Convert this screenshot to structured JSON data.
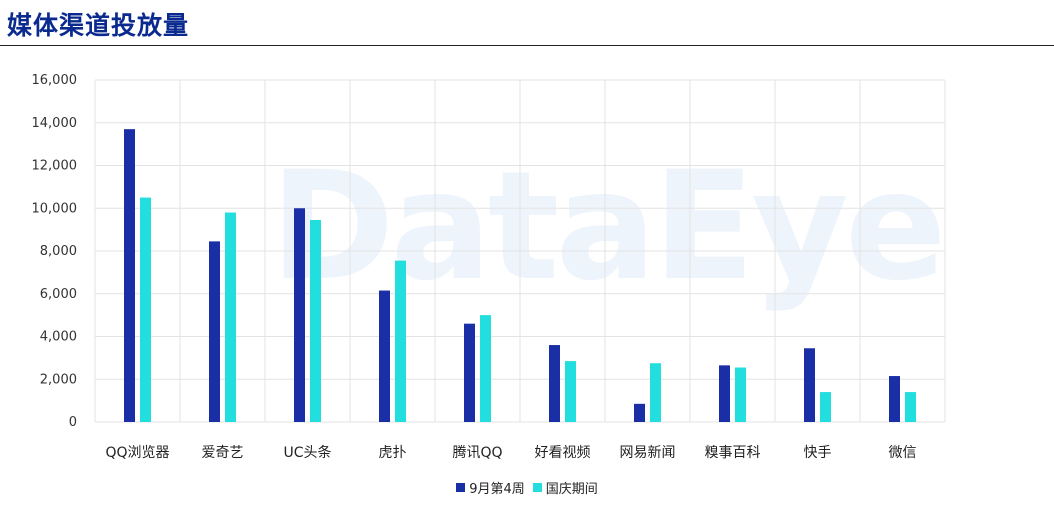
{
  "title": "媒体渠道投放量",
  "watermark": "DataEye",
  "colors": {
    "series0": "#1a2fa6",
    "series1": "#22dede",
    "grid": "#e3e3e3",
    "title": "#0b2a8f"
  },
  "chart_data": {
    "type": "bar",
    "categories": [
      "QQ浏览器",
      "爱奇艺",
      "UC头条",
      "虎扑",
      "腾讯QQ",
      "好看视频",
      "网易新闻",
      "糗事百科",
      "快手",
      "微信"
    ],
    "series": [
      {
        "name": "9月第4周",
        "values": [
          13700,
          8450,
          10000,
          6150,
          4600,
          3600,
          850,
          2650,
          3450,
          2150
        ]
      },
      {
        "name": "国庆期间",
        "values": [
          10500,
          9800,
          9450,
          7550,
          5000,
          2850,
          2750,
          2550,
          1400,
          1400
        ]
      }
    ],
    "ylim": [
      0,
      16000
    ],
    "yticks": [
      "0",
      "2,000",
      "4,000",
      "6,000",
      "8,000",
      "10,000",
      "12,000",
      "14,000",
      "16,000"
    ],
    "grid": true,
    "legend_position": "bottom"
  }
}
